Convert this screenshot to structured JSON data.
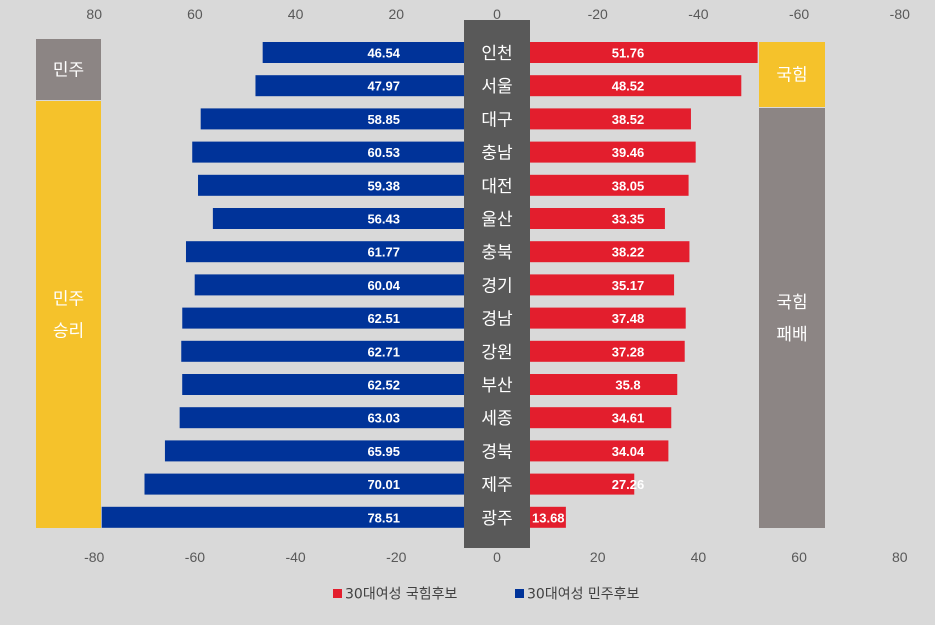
{
  "chart_data": {
    "type": "bar",
    "orientation": "horizontal-butterfly",
    "categories": [
      "인천",
      "서울",
      "대구",
      "충남",
      "대전",
      "울산",
      "충북",
      "경기",
      "경남",
      "강원",
      "부산",
      "세종",
      "경북",
      "제주",
      "광주"
    ],
    "series": [
      {
        "name": "30대여성 민주후보",
        "side": "left",
        "color": "#003399",
        "values": [
          46.54,
          47.97,
          58.85,
          60.53,
          59.38,
          56.43,
          61.77,
          60.04,
          62.51,
          62.71,
          62.52,
          63.03,
          65.95,
          70.01,
          78.51
        ],
        "labels": [
          "46.54",
          "47.97",
          "58.85",
          "60.53",
          "59.38",
          "56.43",
          "61.77",
          "60.04",
          "62.51",
          "62.71",
          "62.52",
          "63.03",
          "65.95",
          "70.01",
          "78.51"
        ]
      },
      {
        "name": "30대여성 국힘후보",
        "side": "right",
        "color": "#e31e2d",
        "values": [
          51.76,
          48.52,
          38.52,
          39.46,
          38.05,
          33.35,
          38.22,
          35.17,
          37.48,
          37.28,
          35.8,
          34.61,
          34.04,
          27.26,
          13.68
        ],
        "labels": [
          "51.76",
          "48.52",
          "38.52",
          "39.46",
          "38.05",
          "33.35",
          "38.22",
          "35.17",
          "37.48",
          "37.28",
          "35.8",
          "34.61",
          "34.04",
          "27.26",
          "13.68"
        ]
      }
    ],
    "top_axis_ticks": [
      "80",
      "60",
      "40",
      "20",
      "0",
      "-20",
      "-40",
      "-60",
      "-80"
    ],
    "bottom_axis_ticks": [
      "-80",
      "-60",
      "-40",
      "-20",
      "0",
      "20",
      "40",
      "60",
      "80"
    ],
    "xlim": [
      -80,
      80
    ],
    "grid": false,
    "legend": "bottom",
    "side_boxes": {
      "left": [
        {
          "lines": [
            "민주"
          ],
          "color": "#8c8584",
          "rows": [
            0,
            1
          ]
        },
        {
          "lines": [
            "민주",
            "승리"
          ],
          "color": "#f5c22b",
          "rows": [
            2,
            14
          ]
        }
      ],
      "right": [
        {
          "lines": [
            "국힘"
          ],
          "color": "#f5c22b",
          "rows": [
            0,
            1
          ]
        },
        {
          "lines": [
            "국힘",
            "패배"
          ],
          "color": "#8c8584",
          "rows": [
            2,
            14
          ]
        }
      ]
    },
    "center_band_color": "#595959"
  }
}
